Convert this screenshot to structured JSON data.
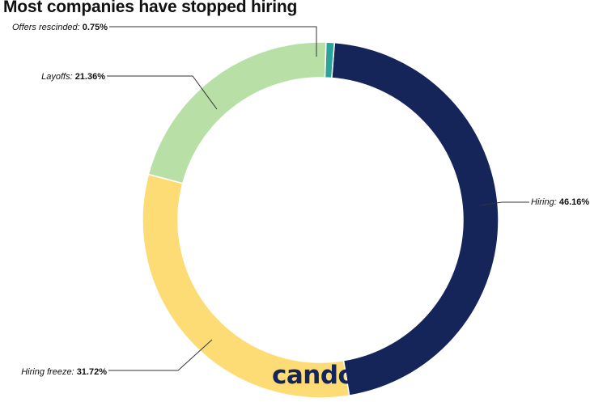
{
  "chart_data": {
    "type": "pie",
    "title": "Most companies have stopped hiring",
    "slices": [
      {
        "label": "Hiring",
        "value": 46.16,
        "value_text": "46.16%",
        "color": "#15255a"
      },
      {
        "label": "Hiring freeze",
        "value": 31.72,
        "value_text": "31.72%",
        "color": "#fddc75"
      },
      {
        "label": "Layoffs",
        "value": 21.36,
        "value_text": "21.36%",
        "color": "#b8e0a6"
      },
      {
        "label": "Offers rescinded",
        "value": 0.75,
        "value_text": "0.75%",
        "color": "#2aa39a"
      }
    ],
    "donut": true,
    "legend": "none",
    "data_labels": "outside with leader lines"
  },
  "watermark": "candor"
}
